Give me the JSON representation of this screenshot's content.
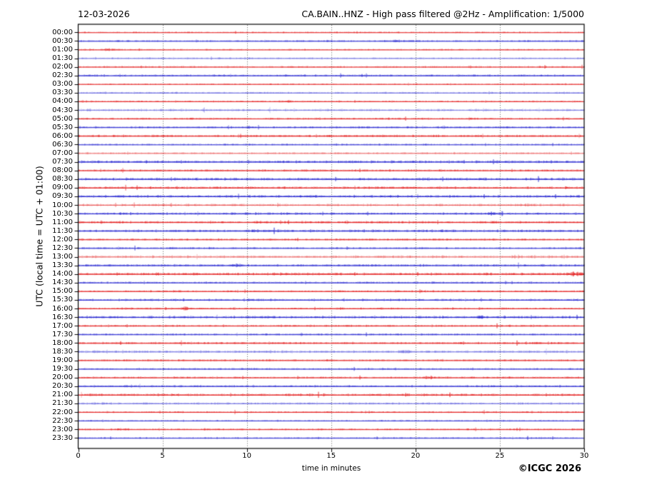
{
  "header": {
    "date_label": "12-03-2026",
    "title": "CA.BAIN..HNZ - High pass filtered @2Hz - Amplification: 1/5000"
  },
  "footer": {
    "copyright": "©ICGC 2026"
  },
  "chart_data": {
    "type": "line",
    "subtype": "helicorder-seismogram",
    "title": "CA.BAIN..HNZ - High pass filtered @2Hz - Amplification: 1/5000",
    "date": "12-03-2026",
    "station": "CA.BAIN..HNZ",
    "filter": "High pass filtered @2Hz",
    "amplification": "1/5000",
    "xlabel": "time in minutes",
    "ylabel": "UTC (local time = UTC + 01:00)",
    "xlim": [
      0,
      30
    ],
    "x_ticks": [
      0,
      5,
      10,
      15,
      20,
      25,
      30
    ],
    "grid": {
      "vertical_dotted_at_minutes": [
        5,
        10,
        15,
        20,
        25
      ],
      "horizontal": false
    },
    "minutes_per_row": 30,
    "rows_count": 48,
    "legend_position": "none",
    "colors": {
      "red_trace": "#e00000",
      "blue_trace": "#1212cc",
      "axis": "#000000",
      "grid": "#3a3a3a",
      "background": "#ffffff"
    },
    "trace_description": "continuous ambient seismic noise, alternating red/blue half-hour rows, amp = relative noise amplitude, alpha = ink intensity",
    "rows": [
      {
        "label": "00:00",
        "color": "red",
        "amp": 0.7,
        "alpha": 0.85
      },
      {
        "label": "00:30",
        "color": "blue",
        "amp": 0.9,
        "alpha": 0.85
      },
      {
        "label": "01:00",
        "color": "red",
        "amp": 0.7,
        "alpha": 0.85
      },
      {
        "label": "01:30",
        "color": "blue",
        "amp": 0.9,
        "alpha": 0.5
      },
      {
        "label": "02:00",
        "color": "red",
        "amp": 0.9,
        "alpha": 0.8
      },
      {
        "label": "02:30",
        "color": "blue",
        "amp": 1.0,
        "alpha": 0.9
      },
      {
        "label": "03:00",
        "color": "red",
        "amp": 0.7,
        "alpha": 0.8
      },
      {
        "label": "03:30",
        "color": "blue",
        "amp": 0.9,
        "alpha": 0.55
      },
      {
        "label": "04:00",
        "color": "red",
        "amp": 0.9,
        "alpha": 0.8
      },
      {
        "label": "04:30",
        "color": "blue",
        "amp": 1.3,
        "alpha": 0.45
      },
      {
        "label": "05:00",
        "color": "red",
        "amp": 1.0,
        "alpha": 0.85
      },
      {
        "label": "05:30",
        "color": "blue",
        "amp": 1.0,
        "alpha": 0.9
      },
      {
        "label": "06:00",
        "color": "red",
        "amp": 1.1,
        "alpha": 0.9
      },
      {
        "label": "06:30",
        "color": "blue",
        "amp": 0.9,
        "alpha": 0.8
      },
      {
        "label": "07:00",
        "color": "red",
        "amp": 1.0,
        "alpha": 0.5
      },
      {
        "label": "07:30",
        "color": "blue",
        "amp": 1.3,
        "alpha": 0.95
      },
      {
        "label": "08:00",
        "color": "red",
        "amp": 1.1,
        "alpha": 0.85
      },
      {
        "label": "08:30",
        "color": "blue",
        "amp": 1.3,
        "alpha": 0.95
      },
      {
        "label": "09:00",
        "color": "red",
        "amp": 1.2,
        "alpha": 0.9
      },
      {
        "label": "09:30",
        "color": "blue",
        "amp": 1.3,
        "alpha": 0.95
      },
      {
        "label": "10:00",
        "color": "red",
        "amp": 1.3,
        "alpha": 0.55
      },
      {
        "label": "10:30",
        "color": "blue",
        "amp": 1.2,
        "alpha": 0.9
      },
      {
        "label": "11:00",
        "color": "red",
        "amp": 1.2,
        "alpha": 0.9
      },
      {
        "label": "11:30",
        "color": "blue",
        "amp": 1.3,
        "alpha": 0.95
      },
      {
        "label": "12:00",
        "color": "red",
        "amp": 1.0,
        "alpha": 0.85
      },
      {
        "label": "12:30",
        "color": "blue",
        "amp": 1.0,
        "alpha": 0.85
      },
      {
        "label": "13:00",
        "color": "red",
        "amp": 1.4,
        "alpha": 0.5
      },
      {
        "label": "13:30",
        "color": "blue",
        "amp": 1.2,
        "alpha": 0.9
      },
      {
        "label": "14:00",
        "color": "red",
        "amp": 1.3,
        "alpha": 0.95
      },
      {
        "label": "14:30",
        "color": "blue",
        "amp": 1.0,
        "alpha": 0.85
      },
      {
        "label": "15:00",
        "color": "red",
        "amp": 1.0,
        "alpha": 0.85
      },
      {
        "label": "15:30",
        "color": "blue",
        "amp": 1.1,
        "alpha": 0.9
      },
      {
        "label": "16:00",
        "color": "red",
        "amp": 1.0,
        "alpha": 0.85
      },
      {
        "label": "16:30",
        "color": "blue",
        "amp": 1.3,
        "alpha": 0.95
      },
      {
        "label": "17:00",
        "color": "red",
        "amp": 1.0,
        "alpha": 0.85
      },
      {
        "label": "17:30",
        "color": "blue",
        "amp": 1.0,
        "alpha": 0.85
      },
      {
        "label": "18:00",
        "color": "red",
        "amp": 1.1,
        "alpha": 0.9
      },
      {
        "label": "18:30",
        "color": "blue",
        "amp": 1.3,
        "alpha": 0.5
      },
      {
        "label": "19:00",
        "color": "red",
        "amp": 1.0,
        "alpha": 0.85
      },
      {
        "label": "19:30",
        "color": "blue",
        "amp": 0.9,
        "alpha": 0.85
      },
      {
        "label": "20:00",
        "color": "red",
        "amp": 1.0,
        "alpha": 0.85
      },
      {
        "label": "20:30",
        "color": "blue",
        "amp": 1.1,
        "alpha": 0.9
      },
      {
        "label": "21:00",
        "color": "red",
        "amp": 1.2,
        "alpha": 0.9
      },
      {
        "label": "21:30",
        "color": "blue",
        "amp": 1.2,
        "alpha": 0.5
      },
      {
        "label": "22:00",
        "color": "red",
        "amp": 0.9,
        "alpha": 0.85
      },
      {
        "label": "22:30",
        "color": "blue",
        "amp": 0.8,
        "alpha": 0.8
      },
      {
        "label": "23:00",
        "color": "red",
        "amp": 0.9,
        "alpha": 0.85
      },
      {
        "label": "23:30",
        "color": "blue",
        "amp": 0.8,
        "alpha": 0.85
      }
    ],
    "events": [
      {
        "row": 1,
        "minute": 18.7,
        "scale": 1.7
      },
      {
        "row": 2,
        "minute": 1.9,
        "scale": 2.6
      },
      {
        "row": 8,
        "minute": 12.4,
        "scale": 1.7
      },
      {
        "row": 11,
        "minute": 10.2,
        "scale": 1.5
      },
      {
        "row": 21,
        "minute": 24.6,
        "scale": 1.5
      },
      {
        "row": 23,
        "minute": 10.5,
        "scale": 1.5
      },
      {
        "row": 27,
        "minute": 9.4,
        "scale": 2.0
      },
      {
        "row": 28,
        "minute": 29.5,
        "scale": 2.0
      },
      {
        "row": 32,
        "minute": 6.3,
        "scale": 2.2
      },
      {
        "row": 33,
        "minute": 23.8,
        "scale": 1.6
      },
      {
        "row": 37,
        "minute": 19.4,
        "scale": 1.7
      },
      {
        "row": 40,
        "minute": 20.8,
        "scale": 2.0
      },
      {
        "row": 46,
        "minute": 2.6,
        "scale": 1.7
      }
    ]
  }
}
